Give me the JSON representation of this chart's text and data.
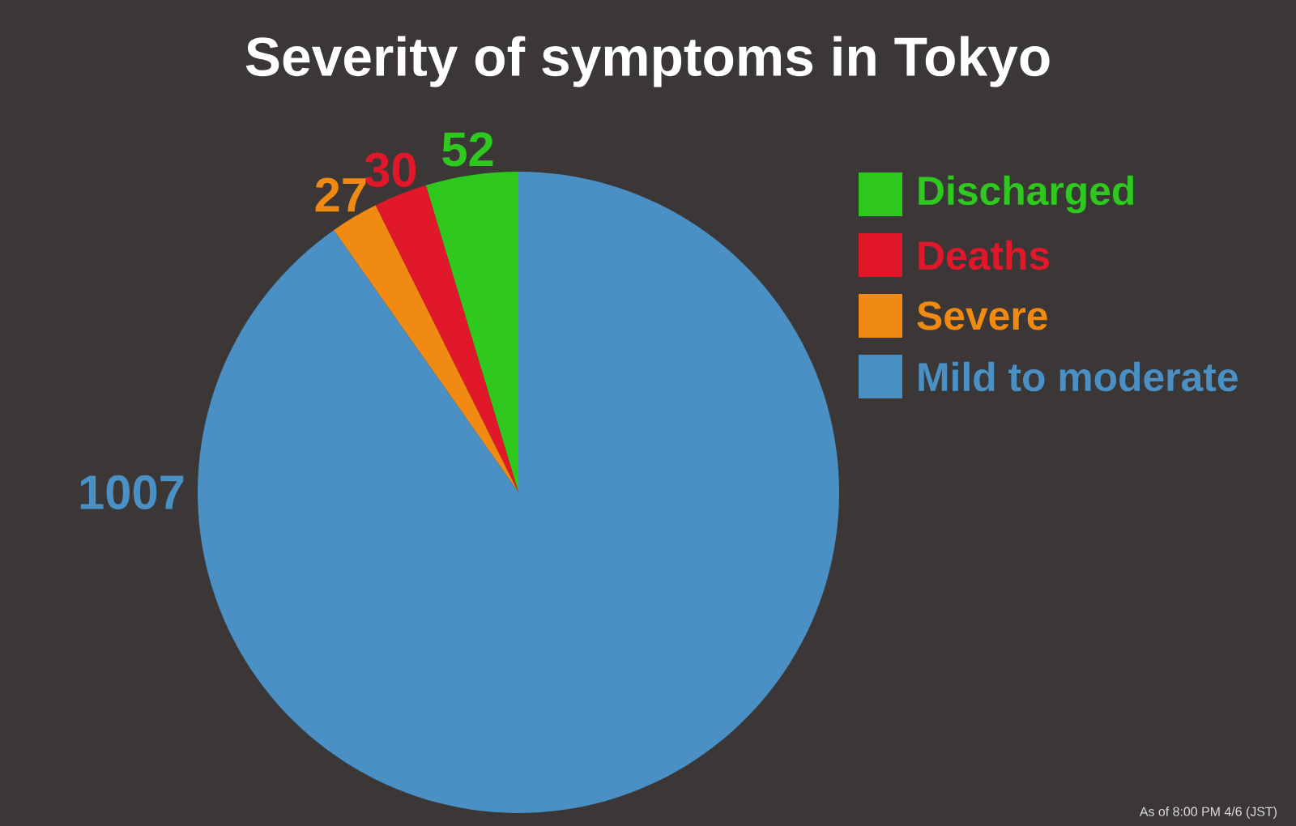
{
  "chart_data": {
    "type": "pie",
    "title": "Severity of symptoms in Tokyo",
    "categories": [
      "Discharged",
      "Deaths",
      "Severe",
      "Mild to moderate"
    ],
    "values": [
      52,
      30,
      27,
      1007
    ],
    "colors": [
      "#2ec81f",
      "#e0182a",
      "#f08a12",
      "#4a90c4"
    ],
    "data_labels": true,
    "legend": "top right",
    "annotations": [
      "As of 8:00 PM 4/6 (JST)"
    ]
  }
}
